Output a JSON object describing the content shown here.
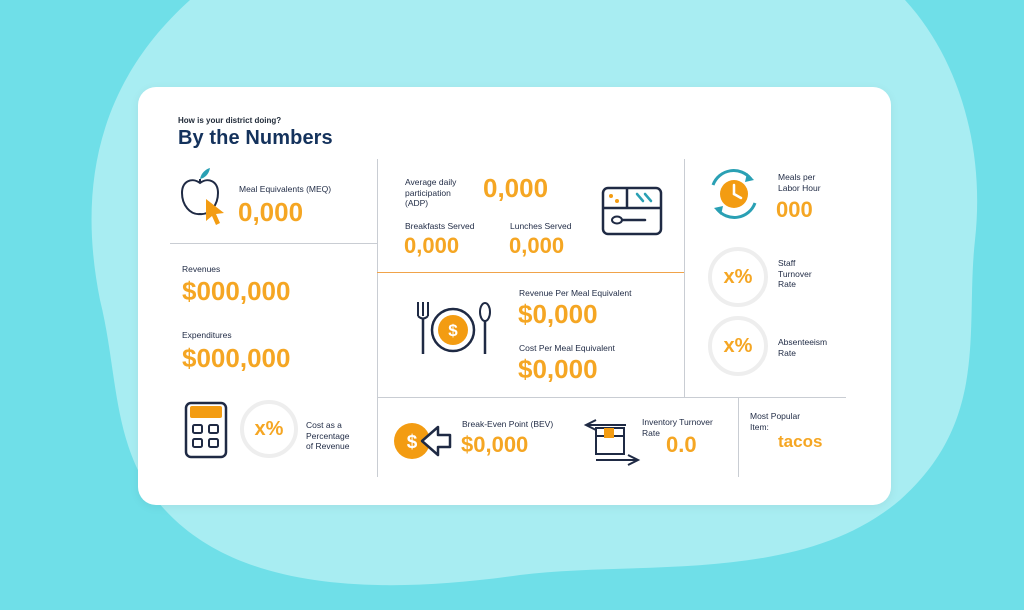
{
  "header": {
    "eyebrow": "How is your district doing?",
    "title": "By the Numbers"
  },
  "meq": {
    "label": "Meal Equivalents (MEQ)",
    "value": "0,000",
    "icon": "apple-cursor-icon"
  },
  "finance": {
    "revenues_label": "Revenues",
    "revenues_value": "$000,000",
    "expenditures_label": "Expenditures",
    "expenditures_value": "$000,000"
  },
  "cost_pct": {
    "badge": "x%",
    "label_1": "Cost as a",
    "label_2": "Percentage",
    "label_3": "of Revenue",
    "icon": "calculator-icon"
  },
  "adp": {
    "label_1": "Average daily",
    "label_2": "participation",
    "label_3": "(ADP)",
    "value": "0,000",
    "breakfasts_label": "Breakfasts Served",
    "breakfasts_value": "0,000",
    "lunches_label": "Lunches Served",
    "lunches_value": "0,000",
    "icon": "lunch-tray-icon"
  },
  "per_meal": {
    "revenue_label": "Revenue Per Meal Equivalent",
    "revenue_value": "$0,000",
    "cost_label": "Cost Per Meal Equivalent",
    "cost_value": "$0,000",
    "icon": "plate-fork-spoon-icon"
  },
  "labor": {
    "label_1": "Meals per",
    "label_2": "Labor Hour",
    "value": "000",
    "icon": "clock-cycle-icon"
  },
  "staff_turnover": {
    "badge": "x%",
    "label_1": "Staff",
    "label_2": "Turnover",
    "label_3": "Rate"
  },
  "absenteeism": {
    "badge": "x%",
    "label_1": "Absenteeism",
    "label_2": "Rate"
  },
  "bev": {
    "label": "Break-Even Point (BEV)",
    "value": "$0,000",
    "icon": "coin-arrow-icon"
  },
  "inventory": {
    "label_1": "Inventory Turnover",
    "label_2": "Rate",
    "value": "0.0",
    "icon": "box-arrows-icon"
  },
  "popular": {
    "label_1": "Most Popular",
    "label_2": "Item:",
    "value": "tacos"
  },
  "colors": {
    "accent": "#f5a623",
    "navy": "#14325c",
    "teal": "#2aa0b4",
    "background": "#6fdfe8",
    "blob": "#a8edf2"
  }
}
